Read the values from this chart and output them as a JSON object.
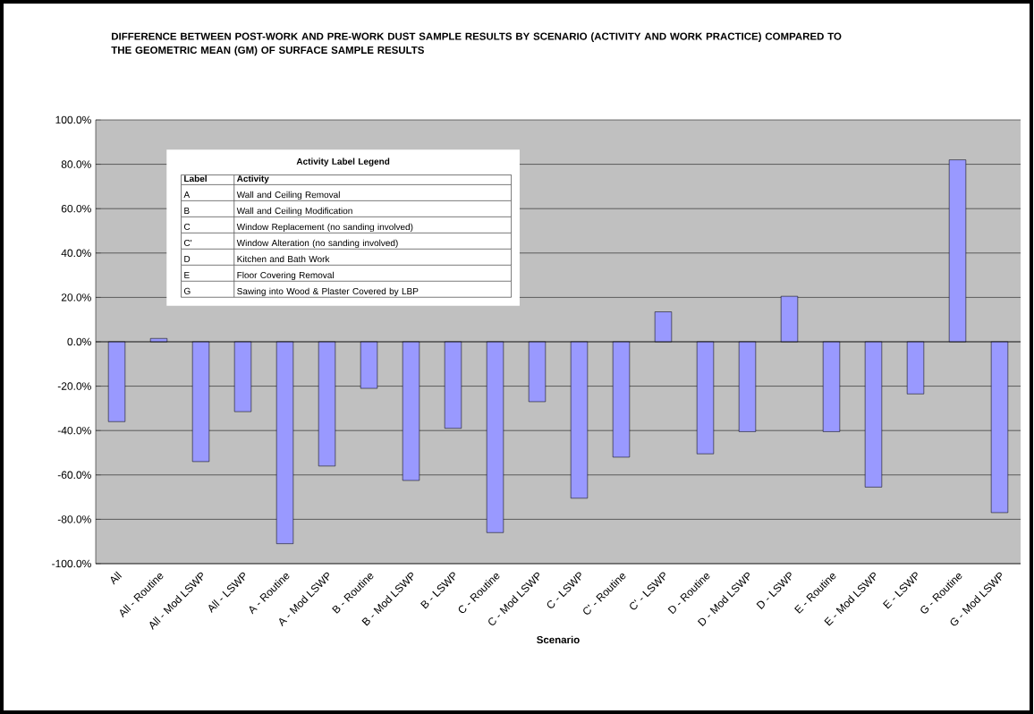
{
  "chart_data": {
    "type": "bar",
    "title": "DIFFERENCE BETWEEN POST-WORK AND PRE-WORK DUST SAMPLE RESULTS BY SCENARIO (ACTIVITY AND WORK PRACTICE) COMPARED TO THE GEOMETRIC MEAN (GM) OF SURFACE SAMPLE RESULTS",
    "xlabel": "Scenario",
    "categories": [
      "All",
      "All - Routine",
      "All - Mod LSWP",
      "All - LSWP",
      "A - Routine",
      "A - Mod LSWP",
      "B - Routine",
      "B - Mod LSWP",
      "B - LSWP",
      "C - Routine",
      "C - Mod LSWP",
      "C - LSWP",
      "C' - Routine",
      "C' - LSWP",
      "D - Routine",
      "D - Mod LSWP",
      "D - LSWP",
      "E - Routine",
      "E - Mod LSWP",
      "E - LSWP",
      "G - Routine",
      "G - Mod LSWP"
    ],
    "values": [
      -36,
      1.5,
      -54,
      -31.5,
      -91,
      -56,
      -21,
      -62.5,
      -39,
      -86,
      -27,
      -70.5,
      -52,
      13.5,
      -50.5,
      -40.5,
      20.5,
      -40.5,
      -65.5,
      -23.5,
      82,
      -77
    ],
    "color": "#9999ff",
    "ylim": [
      -100,
      100
    ],
    "yticks": [
      {
        "value": -100,
        "label": "-100.0%"
      },
      {
        "value": -80,
        "label": "-80.0%"
      },
      {
        "value": -60,
        "label": "-60.0%"
      },
      {
        "value": -40,
        "label": "-40.0%"
      },
      {
        "value": -20,
        "label": "-20.0%"
      },
      {
        "value": 0,
        "label": "0.0%"
      },
      {
        "value": 20,
        "label": "20.0%"
      },
      {
        "value": 40,
        "label": "40.0%"
      },
      {
        "value": 60,
        "label": "60.0%"
      },
      {
        "value": 80,
        "label": "80.0%"
      },
      {
        "value": 100,
        "label": "100.0%"
      }
    ],
    "grid": "y",
    "annotations": [
      "Activity Label Legend",
      "Label",
      "Activity",
      "A",
      "Wall and Ceiling Removal",
      "B",
      "Wall and Ceiling Modification",
      "C",
      "Window Replacement (no sanding involved)",
      "C'",
      "Window Alteration (no sanding involved)",
      "D",
      "Kitchen and Bath Work",
      "E",
      "Floor Covering Removal",
      "G",
      "Sawing into Wood & Plaster Covered by LBP"
    ]
  }
}
